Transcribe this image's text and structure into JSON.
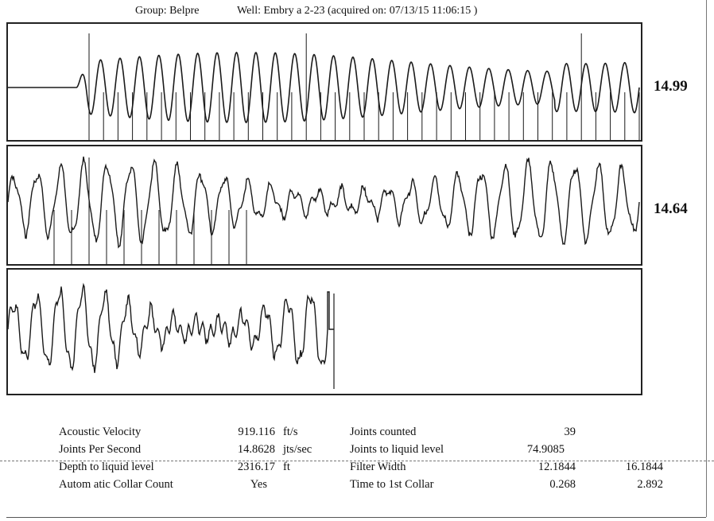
{
  "header": {
    "group": "Group: Belpre",
    "well": "Well: Embry a 2-23 (acquired on: 07/13/15 11:06:15 )"
  },
  "panels": [
    {
      "value": "14.99"
    },
    {
      "value": "14.64"
    },
    {
      "value": ""
    }
  ],
  "stats": {
    "acoustic_velocity": {
      "label": "Acoustic Velocity",
      "value": "919.116",
      "unit": "ft/s"
    },
    "joints_per_second": {
      "label": "Joints Per Second",
      "value": "14.8628",
      "unit": "jts/sec"
    },
    "depth_to_liquid": {
      "label": "Depth to liquid level",
      "value": "2316.17",
      "unit": "ft"
    },
    "auto_collar_count": {
      "label": "Autom atic Collar Count",
      "value": "Yes"
    },
    "joints_counted": {
      "label": "Joints counted",
      "value": "39"
    },
    "joints_to_liquid": {
      "label": "Joints to liquid level",
      "value": "74.9085"
    },
    "filter_width": {
      "label": "Filter Width",
      "value1": "12.1844",
      "value2": "16.1844"
    },
    "time_to_first_collar": {
      "label": "Time to 1st Collar",
      "value1": "0.268",
      "value2": "2.892"
    }
  },
  "chart_data": {
    "type": "line",
    "title": "",
    "xlabel": "",
    "ylabel": "",
    "grid": false,
    "legend": "none",
    "series": [
      {
        "panel": 1,
        "marker_count": 39,
        "amplitude_trend": "quiet start, then steady oscillation",
        "readout": "14.99"
      },
      {
        "panel": 2,
        "marker_count": 12,
        "amplitude_trend": "irregular oscillation",
        "readout": "14.64"
      },
      {
        "panel": 3,
        "marker_count": 1,
        "amplitude_trend": "irregular oscillation ending at ~52% of width",
        "readout": ""
      }
    ],
    "colors": {
      "trace": "#1a1a1a",
      "marker": "#1a1a1a",
      "frame": "#222222"
    }
  }
}
